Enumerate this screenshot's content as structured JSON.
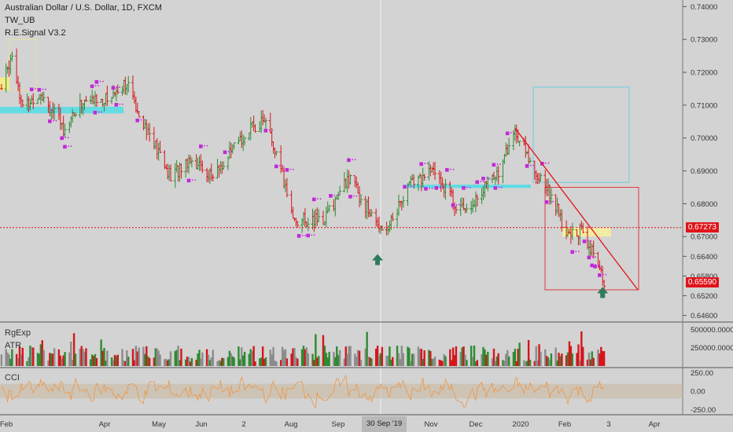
{
  "header": {
    "title": "Australian Dollar / U.S. Dollar, 1D, FXCM",
    "study1": "TW_UB",
    "study2": "R.E.Signal V3.2"
  },
  "panes": {
    "volume_label": "RgExp",
    "atr_label": "ATR",
    "cci_label": "CCI"
  },
  "price_axis": {
    "ticks": [
      "0.74000",
      "0.73000",
      "0.72000",
      "0.71000",
      "0.70000",
      "0.69000",
      "0.68000",
      "0.67000",
      "0.66400",
      "0.65800",
      "0.65200",
      "0.64600"
    ],
    "current_price": "0.65590",
    "current_price_color": "#e0131a",
    "ref_price": "0.67273",
    "ref_price_color": "#e0131a"
  },
  "volume_axis": {
    "ticks": [
      "500000.0000",
      "250000.0000"
    ]
  },
  "cci_axis": {
    "ticks": [
      "250.00",
      "0.00",
      "-250.00"
    ]
  },
  "time_axis": {
    "labels": [
      "Feb",
      "Apr",
      "May",
      "Jun",
      "2",
      "Aug",
      "Sep",
      "Nov",
      "Dec",
      "2020",
      "Feb",
      "3",
      "Apr"
    ],
    "crosshair_label": "30 Sep '19"
  },
  "colors": {
    "up": "#2e8b30",
    "down": "#d4161b",
    "cyan": "#51dde6",
    "trend": "#e0131a",
    "cci_line": "#f09540",
    "signal_arrow": "#2e7a5a"
  },
  "chart_data": {
    "type": "candlestick",
    "title": "Australian Dollar / U.S. Dollar, 1D, FXCM",
    "x_range": [
      "2019-01-24",
      "2020-04-20"
    ],
    "y_range": [
      0.644,
      0.742
    ],
    "close_path": [
      {
        "date": "2019-01-25",
        "price": 0.715
      },
      {
        "date": "2019-02-01",
        "price": 0.726
      },
      {
        "date": "2019-02-08",
        "price": 0.709
      },
      {
        "date": "2019-02-20",
        "price": 0.714
      },
      {
        "date": "2019-03-07",
        "price": 0.703
      },
      {
        "date": "2019-03-20",
        "price": 0.711
      },
      {
        "date": "2019-04-05",
        "price": 0.712
      },
      {
        "date": "2019-04-17",
        "price": 0.717
      },
      {
        "date": "2019-05-03",
        "price": 0.701
      },
      {
        "date": "2019-05-17",
        "price": 0.688
      },
      {
        "date": "2019-05-30",
        "price": 0.694
      },
      {
        "date": "2019-06-14",
        "price": 0.688
      },
      {
        "date": "2019-07-05",
        "price": 0.701
      },
      {
        "date": "2019-07-18",
        "price": 0.706
      },
      {
        "date": "2019-07-30",
        "price": 0.688
      },
      {
        "date": "2019-08-07",
        "price": 0.675
      },
      {
        "date": "2019-08-26",
        "price": 0.675
      },
      {
        "date": "2019-09-12",
        "price": 0.688
      },
      {
        "date": "2019-09-30",
        "price": 0.674
      },
      {
        "date": "2019-10-08",
        "price": 0.673
      },
      {
        "date": "2019-10-22",
        "price": 0.686
      },
      {
        "date": "2019-11-07",
        "price": 0.69
      },
      {
        "date": "2019-11-25",
        "price": 0.678
      },
      {
        "date": "2019-12-06",
        "price": 0.682
      },
      {
        "date": "2019-12-20",
        "price": 0.69
      },
      {
        "date": "2019-12-31",
        "price": 0.702
      },
      {
        "date": "2020-01-13",
        "price": 0.69
      },
      {
        "date": "2020-01-24",
        "price": 0.683
      },
      {
        "date": "2020-02-03",
        "price": 0.67
      },
      {
        "date": "2020-02-14",
        "price": 0.672
      },
      {
        "date": "2020-02-28",
        "price": 0.656
      }
    ],
    "horizontal_levels": [
      0.67273,
      0.6559
    ],
    "signals": [
      {
        "date": "2019-10-01",
        "type": "buy-arrow"
      },
      {
        "date": "2020-02-27",
        "type": "buy-arrow"
      }
    ],
    "volume_ylim": [
      0,
      600000
    ],
    "cci_ylim": [
      -300,
      300
    ]
  }
}
